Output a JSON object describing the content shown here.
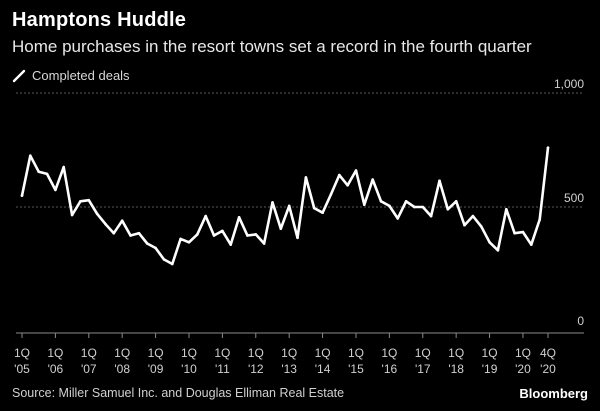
{
  "colors": {
    "background": "#000000",
    "line": "#ffffff",
    "grid": "#5a5a5a",
    "axis_text": "#d0d0d0"
  },
  "footer": {
    "source": "Source: Miller Samuel Inc. and Douglas Elliman Real Estate",
    "brand": "Bloomberg"
  },
  "chart_data": {
    "type": "line",
    "title": "Hamptons Huddle",
    "subtitle": "Home purchases in the resort towns set a record in the fourth quarter",
    "legend": [
      "Completed deals"
    ],
    "legend_placement": "top-left",
    "grid": true,
    "ylim": [
      0,
      1000
    ],
    "yticks": [
      0,
      500,
      1000
    ],
    "ytick_labels": [
      "0",
      "500",
      "1,000"
    ],
    "xtick_labels": [
      {
        "q": "1Q",
        "y": "'05",
        "index": 0
      },
      {
        "q": "1Q",
        "y": "'06",
        "index": 4
      },
      {
        "q": "1Q",
        "y": "'07",
        "index": 8
      },
      {
        "q": "1Q",
        "y": "'08",
        "index": 12
      },
      {
        "q": "1Q",
        "y": "'09",
        "index": 16
      },
      {
        "q": "1Q",
        "y": "'10",
        "index": 20
      },
      {
        "q": "1Q",
        "y": "'11",
        "index": 24
      },
      {
        "q": "1Q",
        "y": "'12",
        "index": 28
      },
      {
        "q": "1Q",
        "y": "'13",
        "index": 32
      },
      {
        "q": "1Q",
        "y": "'14",
        "index": 36
      },
      {
        "q": "1Q",
        "y": "'15",
        "index": 40
      },
      {
        "q": "1Q",
        "y": "'16",
        "index": 44
      },
      {
        "q": "1Q",
        "y": "'17",
        "index": 48
      },
      {
        "q": "1Q",
        "y": "'18",
        "index": 52
      },
      {
        "q": "1Q",
        "y": "'19",
        "index": 56
      },
      {
        "q": "1Q",
        "y": "'20",
        "index": 60
      },
      {
        "q": "4Q",
        "y": "'20",
        "index": 63
      }
    ],
    "series": [
      {
        "name": "Completed deals",
        "values": [
          550,
          725,
          655,
          645,
          575,
          675,
          465,
          525,
          530,
          470,
          425,
          385,
          440,
          375,
          385,
          340,
          320,
          270,
          250,
          360,
          345,
          380,
          460,
          375,
          395,
          335,
          455,
          375,
          380,
          340,
          520,
          405,
          505,
          365,
          630,
          495,
          475,
          555,
          640,
          595,
          660,
          510,
          620,
          525,
          505,
          450,
          525,
          500,
          500,
          460,
          615,
          490,
          525,
          420,
          460,
          415,
          345,
          310,
          490,
          385,
          390,
          335,
          445,
          760
        ]
      }
    ]
  }
}
